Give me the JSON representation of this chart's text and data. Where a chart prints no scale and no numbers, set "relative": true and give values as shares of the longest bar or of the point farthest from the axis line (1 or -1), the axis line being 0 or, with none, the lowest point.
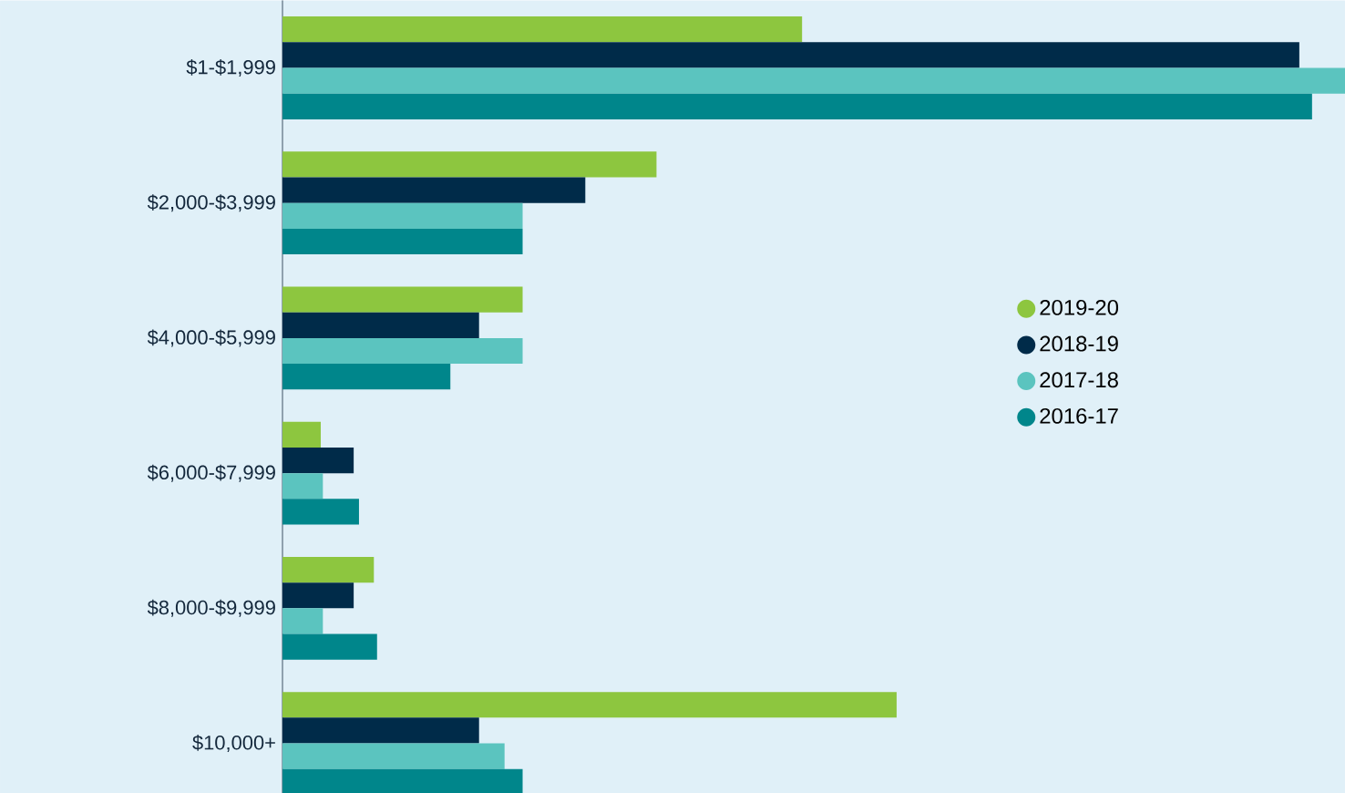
{
  "chart_data": {
    "type": "bar",
    "orientation": "horizontal",
    "relative": true,
    "legend": "right",
    "marker": "circle",
    "categories": [
      "$1-$1,999",
      "$2,000-$3,999",
      "$4,000-$5,999",
      "$6,000-$7,999",
      "$8,000-$9,999",
      "$10,000+"
    ],
    "series": [
      {
        "name": "2019-20",
        "color": "#8dc63f",
        "values": [
          0.489,
          0.352,
          0.226,
          0.036,
          0.086,
          0.578
        ]
      },
      {
        "name": "2018-19",
        "color": "#002b49",
        "values": [
          0.957,
          0.285,
          0.185,
          0.067,
          0.067,
          0.185
        ]
      },
      {
        "name": "2017-18",
        "color": "#5bc4bf",
        "values": [
          1,
          0.226,
          0.226,
          0.038,
          0.038,
          0.209
        ]
      },
      {
        "name": "2016-17",
        "color": "#00868b",
        "values": [
          0.969,
          0.226,
          0.158,
          0.072,
          0.089,
          0.226
        ]
      }
    ]
  }
}
